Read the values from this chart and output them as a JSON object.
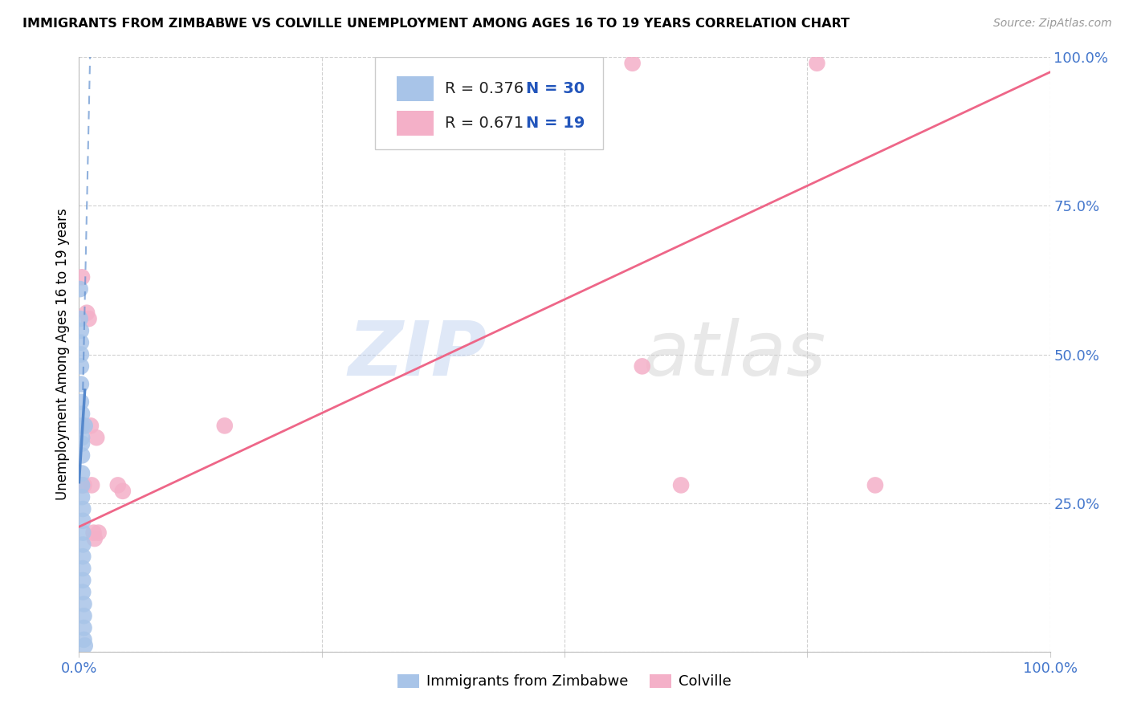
{
  "title": "IMMIGRANTS FROM ZIMBABWE VS COLVILLE UNEMPLOYMENT AMONG AGES 16 TO 19 YEARS CORRELATION CHART",
  "source": "Source: ZipAtlas.com",
  "ylabel": "Unemployment Among Ages 16 to 19 years",
  "xlim": [
    0,
    1
  ],
  "ylim": [
    0,
    1
  ],
  "x_ticks": [
    0,
    0.25,
    0.5,
    0.75,
    1.0
  ],
  "y_ticks": [
    0,
    0.25,
    0.5,
    0.75,
    1.0
  ],
  "x_tick_labels": [
    "0.0%",
    "",
    "",
    "",
    "100.0%"
  ],
  "y_tick_labels_right": [
    "",
    "25.0%",
    "50.0%",
    "75.0%",
    "100.0%"
  ],
  "watermark_zip": "ZIP",
  "watermark_atlas": "atlas",
  "blue_color": "#a8c4e8",
  "pink_color": "#f4b0c8",
  "blue_line_color": "#5588cc",
  "pink_line_color": "#ee6688",
  "blue_scatter": [
    [
      0.001,
      0.61
    ],
    [
      0.001,
      0.56
    ],
    [
      0.002,
      0.54
    ],
    [
      0.002,
      0.52
    ],
    [
      0.002,
      0.5
    ],
    [
      0.002,
      0.48
    ],
    [
      0.002,
      0.45
    ],
    [
      0.002,
      0.42
    ],
    [
      0.003,
      0.4
    ],
    [
      0.003,
      0.38
    ],
    [
      0.003,
      0.36
    ],
    [
      0.003,
      0.35
    ],
    [
      0.003,
      0.33
    ],
    [
      0.003,
      0.3
    ],
    [
      0.003,
      0.28
    ],
    [
      0.003,
      0.26
    ],
    [
      0.004,
      0.24
    ],
    [
      0.004,
      0.22
    ],
    [
      0.004,
      0.2
    ],
    [
      0.004,
      0.18
    ],
    [
      0.004,
      0.16
    ],
    [
      0.004,
      0.14
    ],
    [
      0.004,
      0.12
    ],
    [
      0.004,
      0.1
    ],
    [
      0.005,
      0.08
    ],
    [
      0.005,
      0.06
    ],
    [
      0.005,
      0.04
    ],
    [
      0.005,
      0.02
    ],
    [
      0.006,
      0.38
    ],
    [
      0.006,
      0.01
    ]
  ],
  "pink_scatter": [
    [
      0.003,
      0.28
    ],
    [
      0.003,
      0.63
    ],
    [
      0.005,
      0.28
    ],
    [
      0.008,
      0.57
    ],
    [
      0.01,
      0.56
    ],
    [
      0.012,
      0.38
    ],
    [
      0.013,
      0.28
    ],
    [
      0.015,
      0.2
    ],
    [
      0.016,
      0.19
    ],
    [
      0.018,
      0.36
    ],
    [
      0.02,
      0.2
    ],
    [
      0.04,
      0.28
    ],
    [
      0.045,
      0.27
    ],
    [
      0.15,
      0.38
    ],
    [
      0.57,
      0.99
    ],
    [
      0.58,
      0.48
    ],
    [
      0.62,
      0.28
    ],
    [
      0.76,
      0.99
    ],
    [
      0.82,
      0.28
    ]
  ],
  "blue_solid_line": [
    [
      0.0,
      0.285
    ],
    [
      0.006,
      0.44
    ]
  ],
  "blue_dashed_line": [
    [
      0.004,
      0.44
    ],
    [
      0.012,
      1.05
    ]
  ],
  "pink_line": [
    [
      0.0,
      0.21
    ],
    [
      1.0,
      0.975
    ]
  ]
}
